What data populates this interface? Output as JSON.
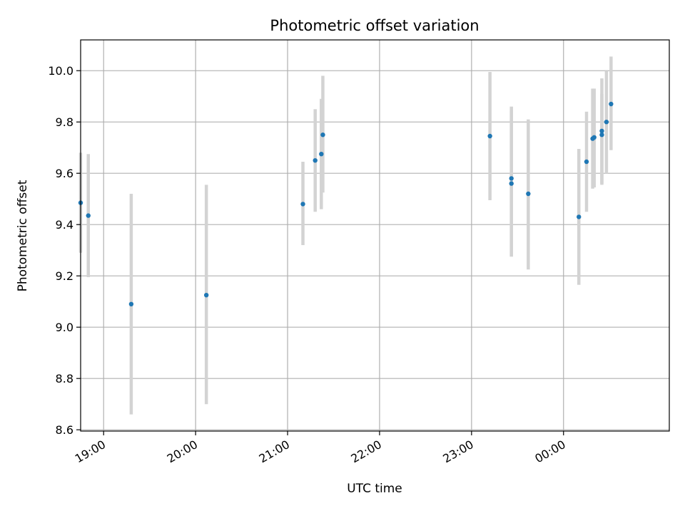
{
  "chart_data": {
    "type": "scatter",
    "title": "Photometric offset variation",
    "xlabel": "UTC time",
    "ylabel": "Photometric offset",
    "grid": true,
    "x_axis_type": "time",
    "xlim": [
      "18:45",
      "25:09"
    ],
    "ylim": [
      8.595,
      10.12
    ],
    "x_ticks": [
      {
        "value": "19:00",
        "label": "19:00"
      },
      {
        "value": "20:00",
        "label": "20:00"
      },
      {
        "value": "21:00",
        "label": "21:00"
      },
      {
        "value": "22:00",
        "label": "22:00"
      },
      {
        "value": "23:00",
        "label": "23:00"
      },
      {
        "value": "24:00",
        "label": "00:00"
      }
    ],
    "y_ticks": [
      "8.6",
      "8.8",
      "9.0",
      "9.2",
      "9.4",
      "9.6",
      "9.8",
      "10.0"
    ],
    "colors": {
      "point": "#1f77b4",
      "errorbar": "#d3d3d3",
      "grid": "#b0b0b0"
    },
    "points": [
      {
        "x": "18:45",
        "y": 9.485,
        "err_low": 9.29,
        "err_high": 9.68
      },
      {
        "x": "18:50",
        "y": 9.435,
        "err_low": 9.195,
        "err_high": 9.675
      },
      {
        "x": "19:18",
        "y": 9.09,
        "err_low": 8.66,
        "err_high": 9.52
      },
      {
        "x": "20:07",
        "y": 9.125,
        "err_low": 8.7,
        "err_high": 9.555
      },
      {
        "x": "21:10",
        "y": 9.48,
        "err_low": 9.32,
        "err_high": 9.645
      },
      {
        "x": "21:18",
        "y": 9.65,
        "err_low": 9.45,
        "err_high": 9.85
      },
      {
        "x": "21:22",
        "y": 9.675,
        "err_low": 9.46,
        "err_high": 9.89
      },
      {
        "x": "21:23",
        "y": 9.75,
        "err_low": 9.525,
        "err_high": 9.98
      },
      {
        "x": "23:12",
        "y": 9.745,
        "err_low": 9.495,
        "err_high": 9.995
      },
      {
        "x": "23:26",
        "y": 9.58,
        "err_low": 9.28,
        "err_high": 9.86
      },
      {
        "x": "23:26",
        "y": 9.56,
        "err_low": 9.275,
        "err_high": 9.845
      },
      {
        "x": "23:37",
        "y": 9.52,
        "err_low": 9.225,
        "err_high": 9.81
      },
      {
        "x": "24:10",
        "y": 9.43,
        "err_low": 9.165,
        "err_high": 9.695
      },
      {
        "x": "24:15",
        "y": 9.645,
        "err_low": 9.45,
        "err_high": 9.84
      },
      {
        "x": "24:19",
        "y": 9.735,
        "err_low": 9.54,
        "err_high": 9.93
      },
      {
        "x": "24:20",
        "y": 9.74,
        "err_low": 9.545,
        "err_high": 9.93
      },
      {
        "x": "24:25",
        "y": 9.75,
        "err_low": 9.56,
        "err_high": 9.91
      },
      {
        "x": "24:25",
        "y": 9.765,
        "err_low": 9.555,
        "err_high": 9.97
      },
      {
        "x": "24:28",
        "y": 9.8,
        "err_low": 9.6,
        "err_high": 10.0
      },
      {
        "x": "24:31",
        "y": 9.87,
        "err_low": 9.69,
        "err_high": 10.055
      }
    ]
  }
}
